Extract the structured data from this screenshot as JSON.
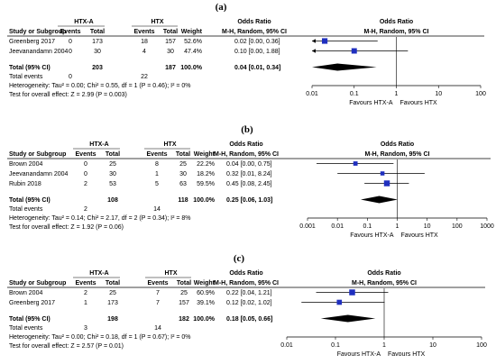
{
  "headers": {
    "study": "Study or Subgroup",
    "group1": "HTX-A",
    "group2": "HTX",
    "events": "Events",
    "total": "Total",
    "weight": "Weight",
    "or": "Odds Ratio",
    "method": "M-H, Random, 95% CI"
  },
  "chart_data": [
    {
      "type": "table",
      "panel_label": "(a)",
      "studies": [
        {
          "name": "Greenberg 2017",
          "e1": "0",
          "t1": "173",
          "e2": "18",
          "t2": "157",
          "weight": "52.6%",
          "ci": "0.02 [0.00, 0.36]",
          "or": 0.02,
          "lo": 0.001,
          "hi": 0.36,
          "w": 52.6,
          "arrow_left": true,
          "arrow_right": false
        },
        {
          "name": "Jeevanandamn 2004",
          "e1": "0",
          "t1": "30",
          "e2": "4",
          "t2": "30",
          "weight": "47.4%",
          "ci": "0.10 [0.00, 1.88]",
          "or": 0.1,
          "lo": 0.001,
          "hi": 1.88,
          "w": 47.4,
          "arrow_left": true,
          "arrow_right": false
        }
      ],
      "total": {
        "label": "Total (95% CI)",
        "t1": "203",
        "t2": "187",
        "weight": "100.0%",
        "ci": "0.04 [0.01, 0.34]",
        "or": 0.04,
        "lo": 0.01,
        "hi": 0.34
      },
      "events_label": "Total events",
      "events1": "0",
      "events2": "22",
      "heterogeneity": "Heterogeneity: Tau² = 0.00; Chi² = 0.55, df = 1 (P = 0.46); I² = 0%",
      "overall": "Test for overall effect: Z = 2.99 (P = 0.003)",
      "axis": {
        "scale": "log",
        "min": 0.01,
        "max": 100,
        "ticks": [
          0.01,
          0.1,
          1,
          10,
          100
        ],
        "tick_labels": [
          "0.01",
          "0.1",
          "1",
          "10",
          "100"
        ]
      },
      "favours_left": "Favours HTX-A",
      "favours_right": "Favours HTX"
    },
    {
      "type": "table",
      "panel_label": "(b)",
      "studies": [
        {
          "name": "Brown 2004",
          "e1": "0",
          "t1": "25",
          "e2": "8",
          "t2": "25",
          "weight": "22.2%",
          "ci": "0.04 [0.00, 0.75]",
          "or": 0.04,
          "lo": 0.002,
          "hi": 0.75,
          "w": 22.2,
          "arrow_left": false,
          "arrow_right": false
        },
        {
          "name": "Jeevanandamn 2004",
          "e1": "0",
          "t1": "30",
          "e2": "1",
          "t2": "30",
          "weight": "18.2%",
          "ci": "0.32 [0.01, 8.24]",
          "or": 0.32,
          "lo": 0.01,
          "hi": 8.24,
          "w": 18.2,
          "arrow_left": false,
          "arrow_right": false
        },
        {
          "name": "Rubin 2018",
          "e1": "2",
          "t1": "53",
          "e2": "5",
          "t2": "63",
          "weight": "59.5%",
          "ci": "0.45 [0.08, 2.45]",
          "or": 0.45,
          "lo": 0.08,
          "hi": 2.45,
          "w": 59.5,
          "arrow_left": false,
          "arrow_right": false
        }
      ],
      "total": {
        "label": "Total (95% CI)",
        "t1": "108",
        "t2": "118",
        "weight": "100.0%",
        "ci": "0.25 [0.06, 1.03]",
        "or": 0.25,
        "lo": 0.06,
        "hi": 1.03
      },
      "events_label": "Total events",
      "events1": "2",
      "events2": "14",
      "heterogeneity": "Heterogeneity: Tau² = 0.14; Chi² = 2.17, df = 2 (P = 0.34); I² = 8%",
      "overall": "Test for overall effect: Z = 1.92 (P = 0.06)",
      "axis": {
        "scale": "log",
        "min": 0.001,
        "max": 1000,
        "ticks": [
          0.001,
          0.01,
          0.1,
          1,
          10,
          100,
          1000
        ],
        "tick_labels": [
          "0.001",
          "0.01",
          "0.1",
          "1",
          "10",
          "100",
          "1000"
        ]
      },
      "favours_left": "Favours HTX-A",
      "favours_right": "Favours HTX"
    },
    {
      "type": "table",
      "panel_label": "(c)",
      "studies": [
        {
          "name": "Brown 2004",
          "e1": "2",
          "t1": "25",
          "e2": "7",
          "t2": "25",
          "weight": "60.9%",
          "ci": "0.22 [0.04, 1.21]",
          "or": 0.22,
          "lo": 0.04,
          "hi": 1.21,
          "w": 60.9,
          "arrow_left": false,
          "arrow_right": false
        },
        {
          "name": "Greenberg 2017",
          "e1": "1",
          "t1": "173",
          "e2": "7",
          "t2": "157",
          "weight": "39.1%",
          "ci": "0.12 [0.02, 1.02]",
          "or": 0.12,
          "lo": 0.02,
          "hi": 1.02,
          "w": 39.1,
          "arrow_left": false,
          "arrow_right": false
        }
      ],
      "total": {
        "label": "Total (95% CI)",
        "t1": "198",
        "t2": "182",
        "weight": "100.0%",
        "ci": "0.18 [0.05, 0.66]",
        "or": 0.18,
        "lo": 0.05,
        "hi": 0.66
      },
      "events_label": "Total events",
      "events1": "3",
      "events2": "14",
      "heterogeneity": "Heterogeneity: Tau² = 0.00; Chi² = 0.18, df = 1 (P = 0.67); I² = 0%",
      "overall": "Test for overall effect: Z = 2.57 (P = 0.01)",
      "axis": {
        "scale": "log",
        "min": 0.01,
        "max": 100,
        "ticks": [
          0.01,
          0.1,
          1,
          10,
          100
        ],
        "tick_labels": [
          "0.01",
          "0.1",
          "1",
          "10",
          "100"
        ]
      },
      "favours_left": "Favours HTX-A",
      "favours_right": "Favours HTX"
    }
  ],
  "colors": {
    "square": "#1f2fbf",
    "diamond": "#000000",
    "line": "#000000",
    "rule": "#000000"
  }
}
